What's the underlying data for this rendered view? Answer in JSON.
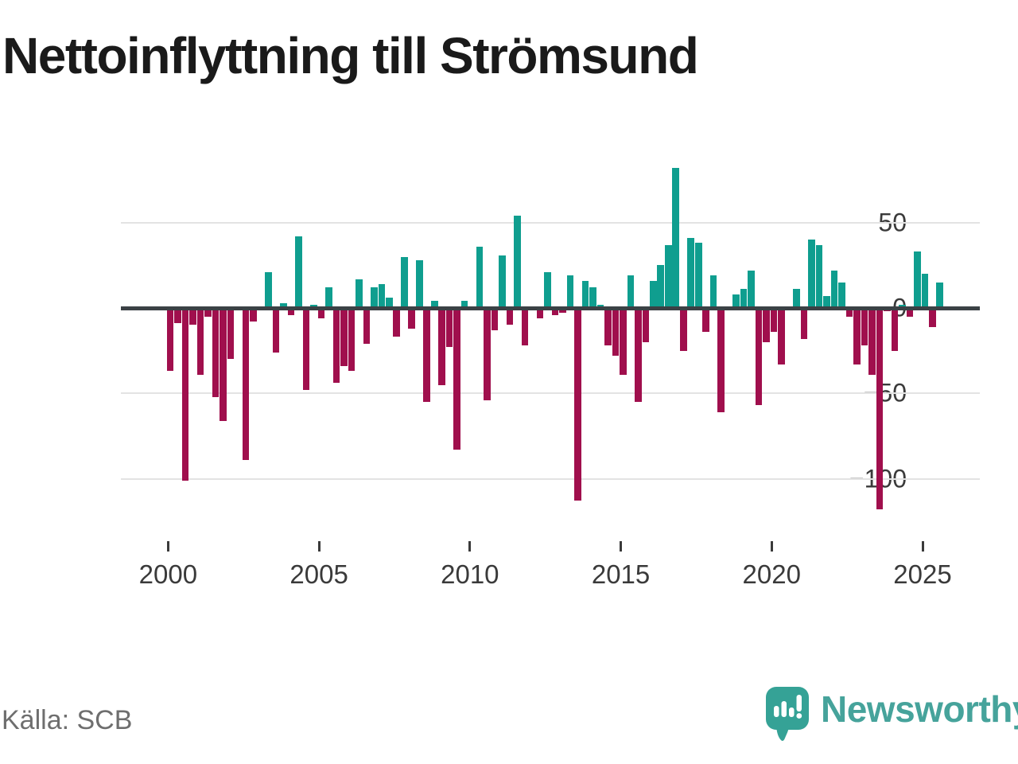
{
  "header": {
    "title": "Nettoinflyttning till Strömsund"
  },
  "footer": {
    "source": "Källa: SCB",
    "brand": "Newsworthy"
  },
  "colors": {
    "positive": "#0f9e8f",
    "negative": "#a00f4d",
    "axis": "#3b4145",
    "grid": "#e3e3e3",
    "tick_text": "#3a3a3a",
    "title_text": "#1a1a1a",
    "source_text": "#6e6e6e",
    "brand": "#46a39b"
  },
  "chart_data": {
    "type": "bar",
    "title": "Nettoinflyttning till Strömsund",
    "xlabel": "",
    "ylabel": "",
    "x_start": "2000 Q1",
    "x_end": "2025 Q3",
    "frequency": "quarterly",
    "x_tick_labels": [
      "2000",
      "2005",
      "2010",
      "2015",
      "2020",
      "2025"
    ],
    "y_ticks": [
      50,
      0,
      -50,
      -100
    ],
    "y_tick_labels": [
      "50",
      "0",
      "−50",
      "−100"
    ],
    "ylim": [
      -125,
      90
    ],
    "grid": "horizontal",
    "legend": "none",
    "values": [
      -37,
      -9,
      -101,
      -10,
      -39,
      -5,
      -52,
      -66,
      -30,
      0,
      -89,
      -8,
      0,
      21,
      -26,
      3,
      -4,
      42,
      -48,
      2,
      -6,
      12,
      -44,
      -34,
      -37,
      17,
      -21,
      12,
      14,
      6,
      -17,
      30,
      -12,
      28,
      -55,
      4,
      -45,
      -23,
      -83,
      4,
      0,
      36,
      -54,
      -13,
      31,
      -10,
      54,
      -22,
      0,
      -6,
      21,
      -4,
      -3,
      19,
      -113,
      16,
      12,
      2,
      -22,
      -28,
      -39,
      19,
      -55,
      -20,
      16,
      25,
      37,
      82,
      -25,
      41,
      38,
      -14,
      19,
      -61,
      0,
      8,
      11,
      22,
      -57,
      -20,
      -14,
      -33,
      0,
      11,
      -18,
      40,
      37,
      7,
      22,
      15,
      -5,
      -33,
      -22,
      -39,
      -118,
      -2,
      -25,
      2,
      -5,
      33,
      20,
      -11,
      15
    ]
  }
}
